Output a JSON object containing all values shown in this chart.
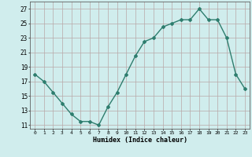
{
  "x": [
    0,
    1,
    2,
    3,
    4,
    5,
    6,
    7,
    8,
    9,
    10,
    11,
    12,
    13,
    14,
    15,
    16,
    17,
    18,
    19,
    20,
    21,
    22,
    23
  ],
  "y": [
    18.0,
    17.0,
    15.5,
    14.0,
    12.5,
    11.5,
    11.5,
    11.0,
    13.5,
    15.5,
    18.0,
    20.5,
    22.5,
    23.0,
    24.5,
    25.0,
    25.5,
    25.5,
    27.0,
    25.5,
    25.5,
    23.0,
    18.0,
    16.0
  ],
  "line_color": "#2e7d6e",
  "marker": "D",
  "marker_size": 2.0,
  "bg_color": "#d0eded",
  "grid_color": "#b8a8a8",
  "xlabel": "Humidex (Indice chaleur)",
  "yticks": [
    11,
    13,
    15,
    17,
    19,
    21,
    23,
    25,
    27
  ],
  "xticks": [
    0,
    1,
    2,
    3,
    4,
    5,
    6,
    7,
    8,
    9,
    10,
    11,
    12,
    13,
    14,
    15,
    16,
    17,
    18,
    19,
    20,
    21,
    22,
    23
  ],
  "xlim": [
    -0.5,
    23.5
  ],
  "ylim": [
    10.5,
    28.0
  ]
}
